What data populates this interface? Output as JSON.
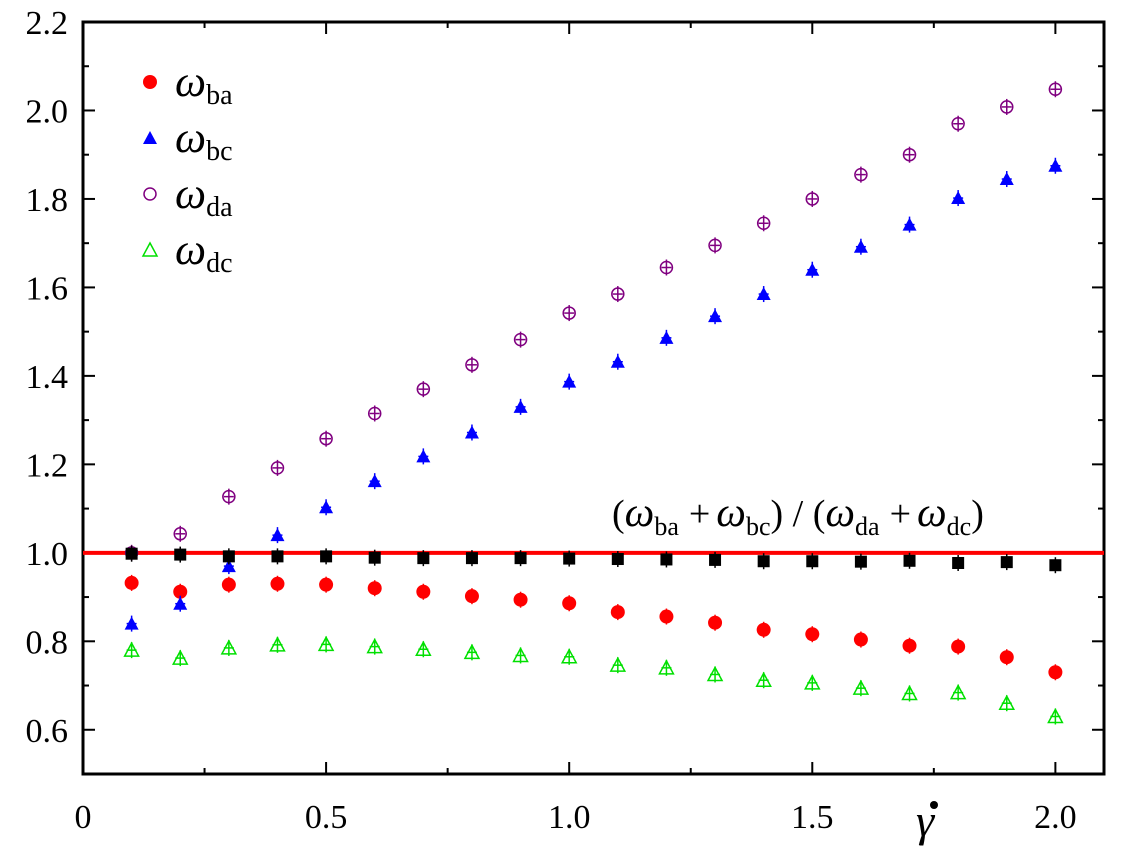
{
  "chart_data": {
    "type": "scatter",
    "title": "",
    "xlabel": "γ",
    "ylabel": "",
    "xlim": [
      0,
      2.1
    ],
    "ylim": [
      0.5,
      2.2
    ],
    "xticks": [
      0,
      0.5,
      1.0,
      1.5,
      2.0
    ],
    "xtick_labels": [
      "0",
      "0.5",
      "1.0",
      "1.5",
      "2.0"
    ],
    "yticks": [
      0.6,
      0.8,
      1.0,
      1.2,
      1.4,
      1.6,
      1.8,
      2.0,
      2.2
    ],
    "ytick_labels": [
      "0.6",
      "0.8",
      "1.0",
      "1.2",
      "1.4",
      "1.6",
      "1.8",
      "2.0",
      "2.2"
    ],
    "x": [
      0.1,
      0.2,
      0.3,
      0.4,
      0.5,
      0.6,
      0.7,
      0.8,
      0.9,
      1.0,
      1.1,
      1.2,
      1.3,
      1.4,
      1.5,
      1.6,
      1.7,
      1.8,
      1.9,
      2.0
    ],
    "series": [
      {
        "name": "ω_ba",
        "symbol": "ω",
        "subscript": "ba",
        "marker": "filled-circle",
        "color": "#ff0000",
        "values": [
          0.932,
          0.912,
          0.928,
          0.93,
          0.928,
          0.92,
          0.912,
          0.902,
          0.894,
          0.886,
          0.866,
          0.856,
          0.842,
          0.826,
          0.816,
          0.804,
          0.79,
          0.788,
          0.764,
          0.73
        ]
      },
      {
        "name": "ω_bc",
        "symbol": "ω",
        "subscript": "bc",
        "marker": "filled-triangle",
        "color": "#0000ff",
        "values": [
          0.84,
          0.885,
          0.97,
          1.04,
          1.103,
          1.162,
          1.218,
          1.272,
          1.33,
          1.387,
          1.432,
          1.486,
          1.535,
          1.585,
          1.64,
          1.692,
          1.742,
          1.802,
          1.845,
          1.875
        ]
      },
      {
        "name": "ω_da",
        "symbol": "ω",
        "subscript": "da",
        "marker": "open-circle",
        "color": "#800080",
        "values": [
          1.0,
          1.043,
          1.127,
          1.192,
          1.258,
          1.315,
          1.37,
          1.425,
          1.482,
          1.542,
          1.585,
          1.645,
          1.695,
          1.745,
          1.8,
          1.855,
          1.9,
          1.97,
          2.008,
          2.048
        ]
      },
      {
        "name": "ω_dc",
        "symbol": "ω",
        "subscript": "dc",
        "marker": "open-triangle",
        "color": "#00e000",
        "values": [
          0.78,
          0.762,
          0.785,
          0.792,
          0.793,
          0.788,
          0.782,
          0.775,
          0.768,
          0.765,
          0.746,
          0.74,
          0.725,
          0.712,
          0.706,
          0.694,
          0.682,
          0.684,
          0.66,
          0.63
        ]
      },
      {
        "name": "(ω_ba + ω_bc) / (ω_da + ω_dc)",
        "marker": "filled-square",
        "color": "#000000",
        "values": [
          0.998,
          0.996,
          0.992,
          0.992,
          0.992,
          0.989,
          0.988,
          0.988,
          0.988,
          0.987,
          0.986,
          0.985,
          0.984,
          0.981,
          0.981,
          0.98,
          0.982,
          0.977,
          0.979,
          0.972
        ]
      }
    ],
    "reference_line": {
      "y": 1.0,
      "color": "#ff0000"
    },
    "ratio_label": {
      "open_paren": "(",
      "omega": "ω",
      "sub_ba": "ba",
      "plus": "+",
      "sub_bc": "bc",
      "close_slash": ") / (",
      "sub_da": "da",
      "sub_dc": "dc",
      "close_paren": ")"
    },
    "legend_position": "top-left",
    "grid": false
  }
}
